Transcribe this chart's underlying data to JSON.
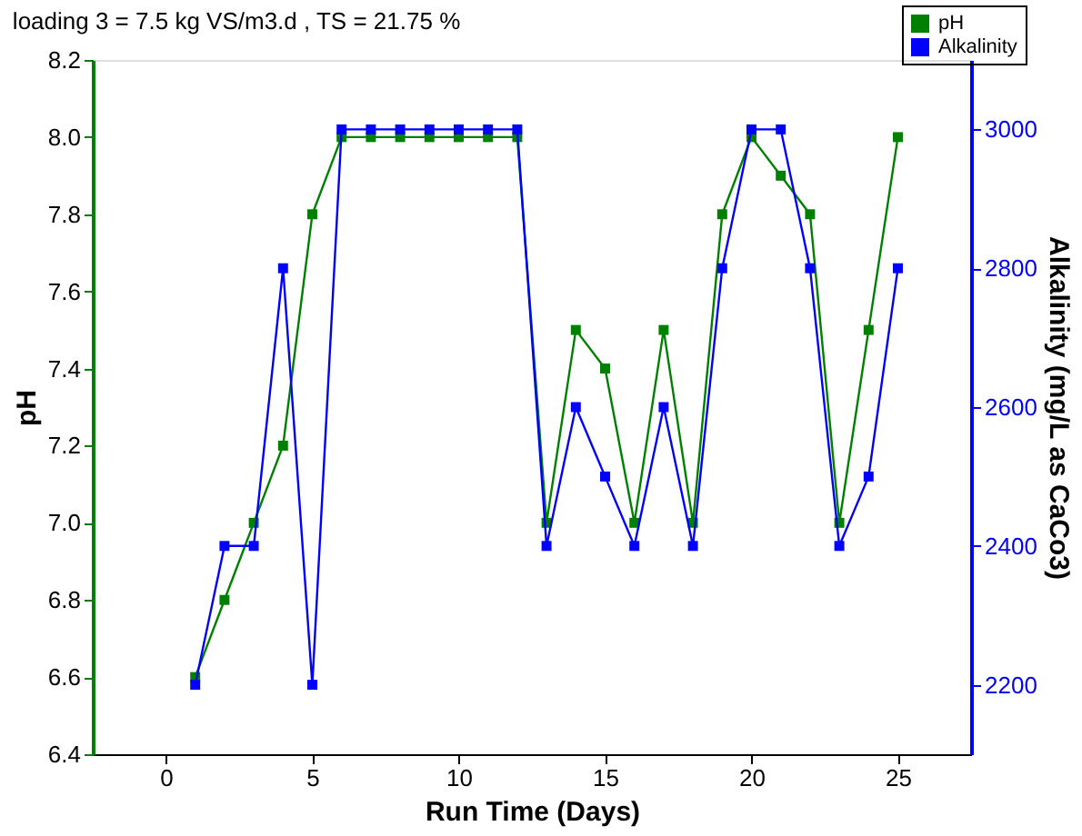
{
  "chart_data": {
    "type": "line",
    "title": "loading 3 =  7.5 kg VS/m3.d , TS = 21.75 %",
    "xlabel": "Run Time (Days)",
    "ylabel": "pH",
    "y2label": "Alkalinity (mg/L as CaCo3)",
    "x": [
      1,
      2,
      3,
      4,
      5,
      6,
      7,
      8,
      9,
      10,
      11,
      12,
      13,
      14,
      15,
      16,
      17,
      18,
      19,
      20,
      21,
      22,
      23,
      24,
      25
    ],
    "series": [
      {
        "name": "pH",
        "color": "#008000",
        "values": [
          6.6,
          6.8,
          7.0,
          7.2,
          7.8,
          8.0,
          8.0,
          8.0,
          8.0,
          8.0,
          8.0,
          8.0,
          7.0,
          7.5,
          7.4,
          7.0,
          7.5,
          7.0,
          7.8,
          8.0,
          7.9,
          7.8,
          7.0,
          7.5,
          8.0
        ]
      },
      {
        "name": "Alkalinity",
        "color": "#0000ff",
        "axis": "y2",
        "values": [
          2200,
          2400,
          2400,
          2800,
          2200,
          3000,
          3000,
          3000,
          3000,
          3000,
          3000,
          3000,
          2400,
          2600,
          2500,
          2400,
          2600,
          2400,
          2800,
          3000,
          3000,
          2800,
          2400,
          2500,
          2800
        ]
      }
    ],
    "xlim": [
      -2.5,
      27.5
    ],
    "xticks": [
      0,
      5,
      10,
      15,
      20,
      25
    ],
    "ylim": [
      6.4,
      8.2
    ],
    "yticks": [
      6.4,
      6.6,
      6.8,
      {
        "value": 7,
        "label": "7.0"
      },
      7.2,
      7.4,
      7.6,
      7.8,
      {
        "value": 8,
        "label": "8.0"
      },
      8.2
    ],
    "y2lim": [
      2100,
      3100
    ],
    "y2ticks": [
      2200,
      2400,
      2600,
      2800,
      3000
    ],
    "marker": "square",
    "line_style": "solid",
    "grid": false,
    "legend": "top right"
  }
}
